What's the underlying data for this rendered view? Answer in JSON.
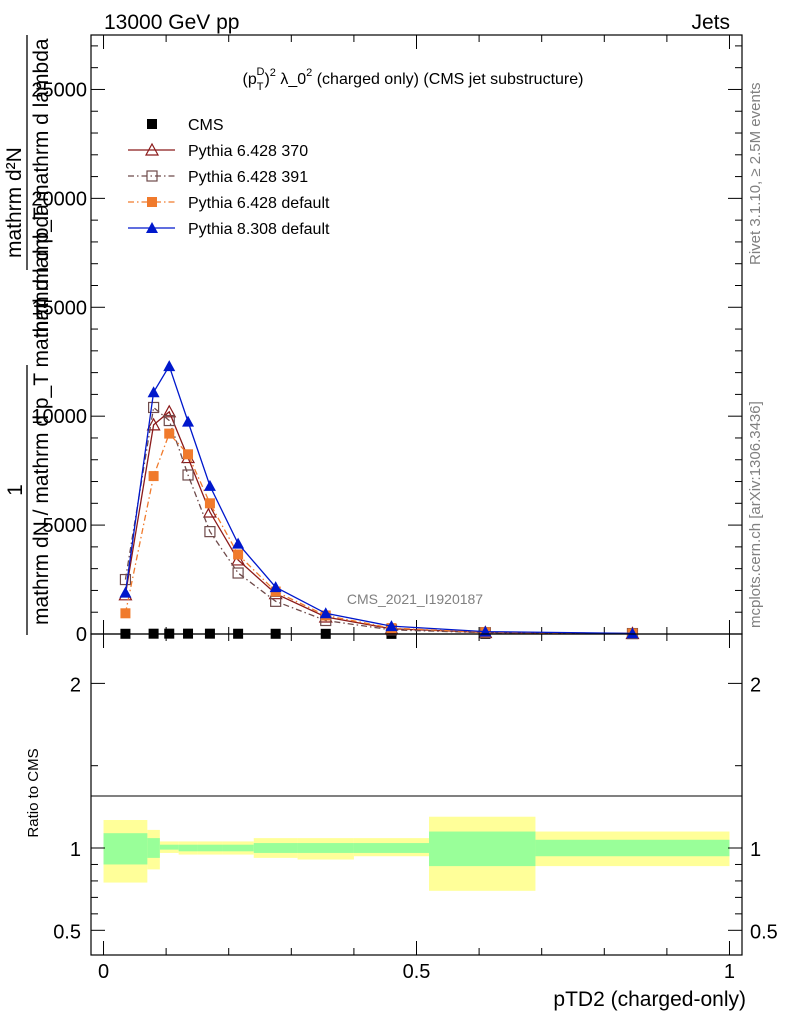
{
  "header": {
    "left": "13000 GeV pp",
    "right": "Jets"
  },
  "side_labels": {
    "rivet": "Rivet 3.1.10, ≥ 2.5M events",
    "mcplots": "mcplots.cern.ch [arXiv:1306.3436]"
  },
  "watermark": "CMS_2021_I1920187",
  "main_ylabel_parts": [
    "1",
    "mathrm dN / mathrm d p_T mathrm d lambda",
    "mathrm d²N",
    "mathrm d p_T mathrm d lambda"
  ],
  "main_title": "(p_T^D)^2 λ_0^2 (charged only) (CMS jet substructure)",
  "colors": {
    "cms": "#000000",
    "p370": "#8b1a1a",
    "p391": "#6e4a4a",
    "p6def": "#f07a2c",
    "p8def": "#0018cc",
    "band_inner": "#99ff99",
    "band_outer": "#ffff99"
  },
  "chart_data": [
    {
      "type": "line",
      "name": "main",
      "xlabel": "pTD2 (charged-only)",
      "ylabel": "1/(mathrm dN / mathrm d p_T mathrm d lambda) mathrm d²N/(mathrm d p_T mathrm d lambda)",
      "xlim": [
        -0.02,
        1.02
      ],
      "ylim": [
        0,
        27500
      ],
      "yticks": [
        0,
        5000,
        10000,
        15000,
        20000,
        25000
      ],
      "ytick_labels": [
        "0",
        "5000",
        "10000",
        "15000",
        "20000",
        "25000"
      ],
      "grid": false,
      "legend_placement": "top-left",
      "x": [
        0.035,
        0.08,
        0.105,
        0.135,
        0.17,
        0.215,
        0.275,
        0.355,
        0.46,
        0.61,
        0.845
      ],
      "series": [
        {
          "name": "CMS",
          "marker": "filled-square",
          "line": "none",
          "values": [
            10,
            14,
            16,
            16,
            15,
            12,
            10,
            8,
            6,
            4,
            2
          ]
        },
        {
          "name": "Pythia 6.428 370",
          "marker": "open-triangle",
          "line": "solid",
          "values": [
            1800,
            9600,
            10200,
            8100,
            5600,
            3400,
            1850,
            780,
            240,
            70,
            20
          ]
        },
        {
          "name": "Pythia 6.428 391",
          "marker": "open-square",
          "line": "dashdot",
          "values": [
            2500,
            10400,
            9800,
            7300,
            4700,
            2800,
            1500,
            620,
            190,
            60,
            20
          ]
        },
        {
          "name": "Pythia 6.428 default",
          "marker": "filled-square",
          "line": "dashdot",
          "values": [
            950,
            7250,
            9200,
            8250,
            6000,
            3650,
            1950,
            850,
            270,
            80,
            25
          ]
        },
        {
          "name": "Pythia 8.308 default",
          "marker": "filled-triangle",
          "line": "solid",
          "values": [
            1900,
            11100,
            12300,
            9750,
            6800,
            4150,
            2150,
            950,
            360,
            110,
            30
          ]
        }
      ]
    },
    {
      "type": "area",
      "name": "ratio",
      "ylabel": "Ratio to CMS",
      "xlim": [
        -0.02,
        1.02
      ],
      "ylim": [
        0.35,
        2.3
      ],
      "yticks": [
        0.5,
        1,
        2
      ],
      "ytick_labels": [
        "0.5",
        "1",
        "2"
      ],
      "xticks": [
        0,
        0.5,
        1
      ],
      "xtick_labels": [
        "0",
        "0.5",
        "1"
      ],
      "bins": [
        {
          "lo": 0.0,
          "hi": 0.07,
          "inner": [
            0.9,
            1.09
          ],
          "outer": [
            0.79,
            1.17
          ]
        },
        {
          "lo": 0.07,
          "hi": 0.09,
          "inner": [
            0.94,
            1.06
          ],
          "outer": [
            0.87,
            1.11
          ]
        },
        {
          "lo": 0.09,
          "hi": 0.12,
          "inner": [
            0.99,
            1.02
          ],
          "outer": [
            0.97,
            1.04
          ]
        },
        {
          "lo": 0.12,
          "hi": 0.15,
          "inner": [
            0.98,
            1.02
          ],
          "outer": [
            0.96,
            1.04
          ]
        },
        {
          "lo": 0.15,
          "hi": 0.19,
          "inner": [
            0.98,
            1.02
          ],
          "outer": [
            0.96,
            1.04
          ]
        },
        {
          "lo": 0.19,
          "hi": 0.24,
          "inner": [
            0.98,
            1.02
          ],
          "outer": [
            0.96,
            1.04
          ]
        },
        {
          "lo": 0.24,
          "hi": 0.31,
          "inner": [
            0.97,
            1.03
          ],
          "outer": [
            0.94,
            1.06
          ]
        },
        {
          "lo": 0.31,
          "hi": 0.4,
          "inner": [
            0.97,
            1.03
          ],
          "outer": [
            0.93,
            1.06
          ]
        },
        {
          "lo": 0.4,
          "hi": 0.52,
          "inner": [
            0.97,
            1.03
          ],
          "outer": [
            0.95,
            1.06
          ]
        },
        {
          "lo": 0.52,
          "hi": 0.69,
          "inner": [
            0.89,
            1.1
          ],
          "outer": [
            0.74,
            1.19
          ]
        },
        {
          "lo": 0.69,
          "hi": 1.0,
          "inner": [
            0.95,
            1.05
          ],
          "outer": [
            0.89,
            1.1
          ]
        }
      ]
    }
  ]
}
